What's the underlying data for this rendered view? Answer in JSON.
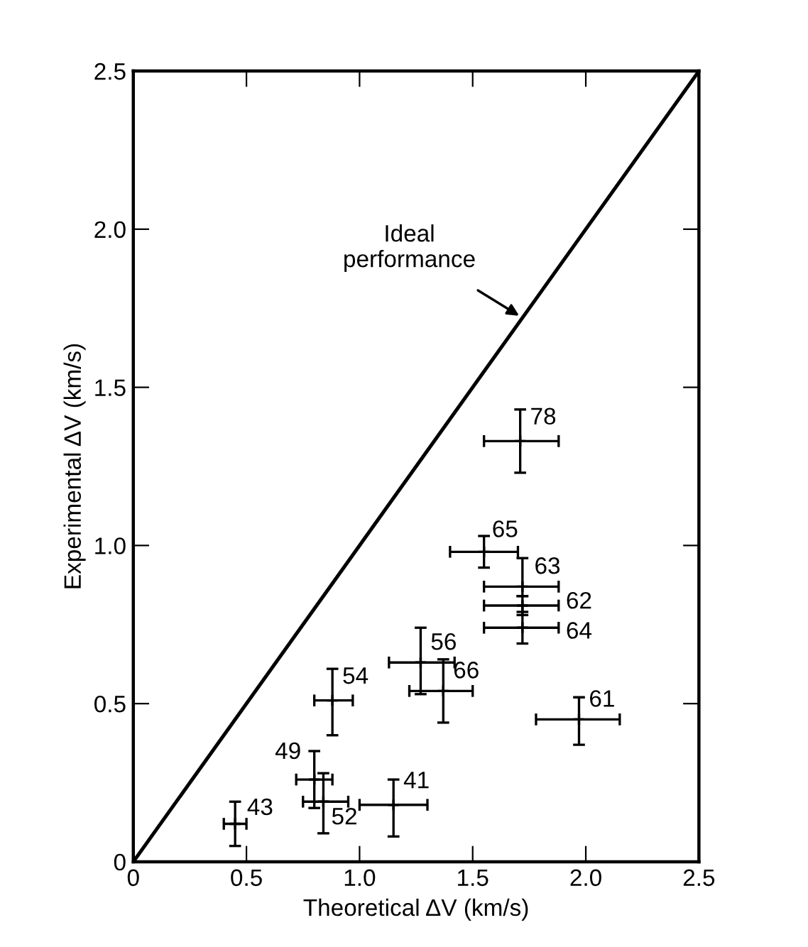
{
  "chart_data": {
    "type": "scatter",
    "xlabel": "Theoretical ΔV (km/s)",
    "ylabel": "Experimental ΔV (km/s)",
    "xlim": [
      0,
      2.5
    ],
    "ylim": [
      0,
      2.5
    ],
    "xticks": [
      {
        "value": 0,
        "label": "0"
      },
      {
        "value": 0.5,
        "label": "0.5"
      },
      {
        "value": 1.0,
        "label": "1.0"
      },
      {
        "value": 1.5,
        "label": "1.5"
      },
      {
        "value": 2.0,
        "label": "2.0"
      },
      {
        "value": 2.5,
        "label": "2.5"
      }
    ],
    "yticks": [
      {
        "value": 0,
        "label": "0"
      },
      {
        "value": 0.5,
        "label": "0.5"
      },
      {
        "value": 1.0,
        "label": "1.0"
      },
      {
        "value": 1.5,
        "label": "1.5"
      },
      {
        "value": 2.0,
        "label": "2.0"
      },
      {
        "value": 2.5,
        "label": "2.5"
      }
    ],
    "grid": false,
    "series": [
      {
        "type": "line",
        "color": "#000000",
        "x": [
          0,
          2.5
        ],
        "values": [
          0,
          2.5
        ],
        "line_style": "solid"
      },
      {
        "color": "#000000",
        "x": [
          0.45,
          0.8,
          0.84,
          1.15,
          0.88,
          1.27,
          1.37,
          1.97,
          1.55,
          1.72,
          1.72,
          1.72,
          1.71
        ],
        "values": [
          0.12,
          0.26,
          0.19,
          0.18,
          0.51,
          0.63,
          0.54,
          0.45,
          0.98,
          0.87,
          0.81,
          0.74,
          1.33
        ],
        "xerrors": [
          [
            0.4,
            0.5
          ],
          [
            0.72,
            0.88
          ],
          [
            0.75,
            0.95
          ],
          [
            1.0,
            1.3
          ],
          [
            0.8,
            0.97
          ],
          [
            1.13,
            1.42
          ],
          [
            1.22,
            1.5
          ],
          [
            1.78,
            2.15
          ],
          [
            1.4,
            1.7
          ],
          [
            1.55,
            1.88
          ],
          [
            1.55,
            1.88
          ],
          [
            1.55,
            1.88
          ],
          [
            1.55,
            1.88
          ]
        ],
        "errors": [
          [
            0.05,
            0.19
          ],
          [
            0.17,
            0.35
          ],
          [
            0.09,
            0.28
          ],
          [
            0.08,
            0.26
          ],
          [
            0.4,
            0.61
          ],
          [
            0.53,
            0.74
          ],
          [
            0.44,
            0.64
          ],
          [
            0.37,
            0.52
          ],
          [
            0.93,
            1.03
          ],
          [
            0.84,
            0.96
          ],
          [
            0.78,
            0.84
          ],
          [
            0.69,
            0.79
          ],
          [
            1.23,
            1.43
          ]
        ]
      }
    ],
    "annotations": [
      {
        "text": "43",
        "x": 0.45,
        "y": 0.12
      },
      {
        "text": "49",
        "x": 0.8,
        "y": 0.26
      },
      {
        "text": "52",
        "x": 0.84,
        "y": 0.19
      },
      {
        "text": "41",
        "x": 1.15,
        "y": 0.18
      },
      {
        "text": "54",
        "x": 0.88,
        "y": 0.51
      },
      {
        "text": "56",
        "x": 1.27,
        "y": 0.63
      },
      {
        "text": "66",
        "x": 1.37,
        "y": 0.54
      },
      {
        "text": "61",
        "x": 1.97,
        "y": 0.45
      },
      {
        "text": "65",
        "x": 1.55,
        "y": 0.98
      },
      {
        "text": "63",
        "x": 1.72,
        "y": 0.87
      },
      {
        "text": "62",
        "x": 1.72,
        "y": 0.81
      },
      {
        "text": "64",
        "x": 1.72,
        "y": 0.74
      },
      {
        "text": "78",
        "x": 1.71,
        "y": 1.33
      },
      {
        "text": "Ideal\nperformance",
        "x": 1.72,
        "y": 1.72
      }
    ]
  }
}
